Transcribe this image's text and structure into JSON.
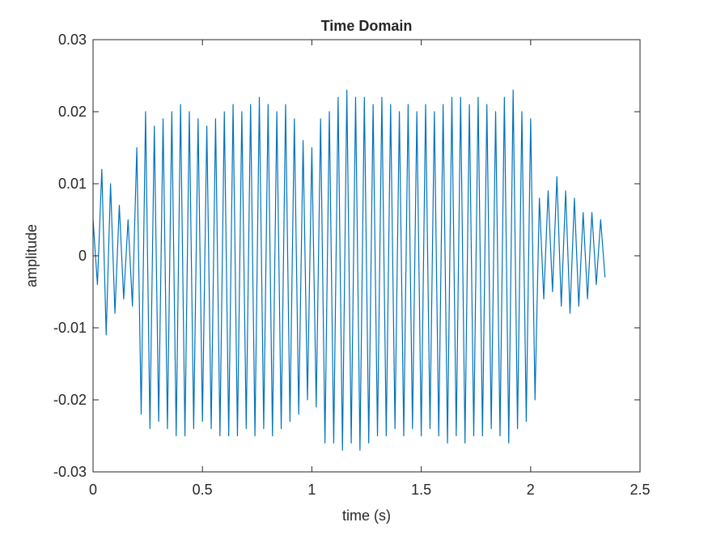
{
  "chart_data": {
    "type": "line",
    "title": "Time Domain",
    "xlabel": "time (s)",
    "ylabel": "amplitude",
    "xlim": [
      0,
      2.5
    ],
    "xticks": [
      0,
      0.5,
      1,
      1.5,
      2,
      2.5
    ],
    "ylim": [
      -0.03,
      0.03
    ],
    "yticks": [
      -0.03,
      -0.02,
      -0.01,
      0,
      0.01,
      0.02,
      0.03
    ],
    "x": [
      0,
      0.02,
      0.04,
      0.06,
      0.08,
      0.1,
      0.12,
      0.14,
      0.16,
      0.18,
      0.2,
      0.22,
      0.24,
      0.26,
      0.28,
      0.3,
      0.32,
      0.34,
      0.36,
      0.38,
      0.4,
      0.42,
      0.44,
      0.46,
      0.48,
      0.5,
      0.52,
      0.54,
      0.56,
      0.58,
      0.6,
      0.62,
      0.64,
      0.66,
      0.68,
      0.7,
      0.72,
      0.74,
      0.76,
      0.78,
      0.8,
      0.82,
      0.84,
      0.86,
      0.88,
      0.9,
      0.92,
      0.94,
      0.96,
      0.98,
      1,
      1.02,
      1.04,
      1.06,
      1.08,
      1.1,
      1.12,
      1.14,
      1.16,
      1.18,
      1.2,
      1.22,
      1.24,
      1.26,
      1.28,
      1.3,
      1.32,
      1.34,
      1.36,
      1.38,
      1.4,
      1.42,
      1.44,
      1.46,
      1.48,
      1.5,
      1.52,
      1.54,
      1.56,
      1.58,
      1.6,
      1.62,
      1.64,
      1.66,
      1.68,
      1.7,
      1.72,
      1.74,
      1.76,
      1.78,
      1.8,
      1.82,
      1.84,
      1.86,
      1.88,
      1.9,
      1.92,
      1.94,
      1.96,
      1.98,
      2,
      2.02,
      2.04,
      2.06,
      2.08,
      2.1,
      2.12,
      2.14,
      2.16,
      2.18,
      2.2,
      2.22,
      2.24,
      2.26,
      2.28,
      2.3,
      2.32,
      2.34
    ],
    "series": [
      {
        "color": "#0072bd",
        "values": [
          0.005,
          -0.004,
          0.012,
          -0.011,
          0.01,
          -0.008,
          0.007,
          -0.006,
          0.005,
          -0.007,
          0.015,
          -0.022,
          0.02,
          -0.024,
          0.018,
          -0.023,
          0.019,
          -0.024,
          0.02,
          -0.025,
          0.021,
          -0.025,
          0.02,
          -0.024,
          0.019,
          -0.023,
          0.018,
          -0.024,
          0.019,
          -0.025,
          0.02,
          -0.025,
          0.021,
          -0.025,
          0.02,
          -0.024,
          0.021,
          -0.025,
          0.022,
          -0.024,
          0.021,
          -0.025,
          0.02,
          -0.024,
          0.021,
          -0.023,
          0.019,
          -0.022,
          0.016,
          -0.02,
          0.015,
          -0.021,
          0.019,
          -0.026,
          0.02,
          -0.026,
          0.022,
          -0.027,
          0.023,
          -0.026,
          0.022,
          -0.027,
          0.022,
          -0.026,
          0.021,
          -0.025,
          0.022,
          -0.025,
          0.021,
          -0.024,
          0.02,
          -0.025,
          0.021,
          -0.024,
          0.02,
          -0.025,
          0.021,
          -0.024,
          0.02,
          -0.025,
          0.021,
          -0.026,
          0.022,
          -0.025,
          0.022,
          -0.026,
          0.021,
          -0.025,
          0.022,
          -0.025,
          0.021,
          -0.024,
          0.02,
          -0.025,
          0.022,
          -0.026,
          0.023,
          -0.024,
          0.02,
          -0.023,
          0.019,
          -0.02,
          0.008,
          -0.006,
          0.009,
          -0.005,
          0.011,
          -0.007,
          0.009,
          -0.008,
          0.008,
          -0.007,
          0.006,
          -0.006,
          0.006,
          -0.004,
          0.005,
          -0.003
        ]
      }
    ]
  }
}
